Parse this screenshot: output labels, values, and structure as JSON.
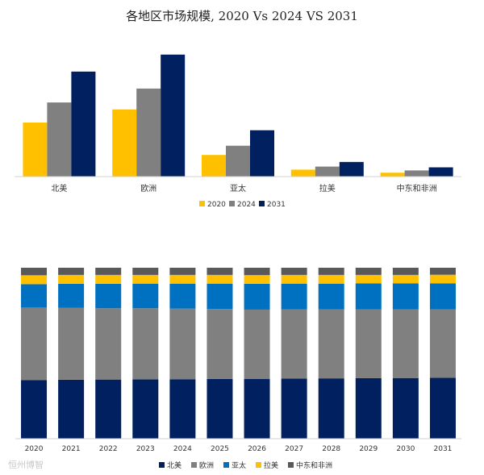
{
  "title": "各地区市场规模, 2020 Vs 2024 VS 2031",
  "watermark": "恒州博智",
  "chart_data": [
    {
      "type": "bar",
      "categories": [
        "北美",
        "欧洲",
        "亚太",
        "拉美",
        "中东和非洲"
      ],
      "series": [
        {
          "name": "2020",
          "color": "#FFC000",
          "values": [
            70,
            87,
            28,
            9,
            5
          ]
        },
        {
          "name": "2024",
          "color": "#808080",
          "values": [
            96,
            114,
            40,
            13,
            8
          ]
        },
        {
          "name": "2031",
          "color": "#002060",
          "values": [
            136,
            158,
            60,
            19,
            12
          ]
        }
      ],
      "ylim": [
        0,
        165
      ],
      "legend": "bottom"
    },
    {
      "type": "bar",
      "stacked": true,
      "percent": true,
      "categories": [
        "2020",
        "2021",
        "2022",
        "2023",
        "2024",
        "2025",
        "2026",
        "2027",
        "2028",
        "2029",
        "2030",
        "2031"
      ],
      "series": [
        {
          "name": "北美",
          "color": "#002060",
          "values": [
            34.2,
            34.5,
            34.6,
            34.7,
            34.8,
            35.0,
            34.9,
            35.2,
            35.3,
            35.4,
            35.5,
            35.6
          ]
        },
        {
          "name": "欧洲",
          "color": "#808080",
          "values": [
            42.5,
            42.0,
            41.7,
            41.6,
            41.3,
            40.9,
            40.6,
            40.4,
            40.3,
            40.2,
            40.1,
            40.0
          ]
        },
        {
          "name": "亚太",
          "color": "#0070C0",
          "values": [
            13.7,
            14.1,
            14.3,
            14.4,
            14.6,
            14.8,
            15.1,
            15.1,
            15.1,
            15.2,
            15.2,
            15.3
          ]
        },
        {
          "name": "拉美",
          "color": "#FFC000",
          "values": [
            5.2,
            5.2,
            5.2,
            5.1,
            5.1,
            5.1,
            5.1,
            5.1,
            5.1,
            5.0,
            5.0,
            5.0
          ]
        },
        {
          "name": "中东和非洲",
          "color": "#595959",
          "values": [
            4.4,
            4.2,
            4.2,
            4.2,
            4.2,
            4.2,
            4.3,
            4.2,
            4.2,
            4.2,
            4.2,
            4.1
          ]
        }
      ],
      "ylim": [
        0,
        100
      ],
      "legend": "bottom"
    }
  ]
}
